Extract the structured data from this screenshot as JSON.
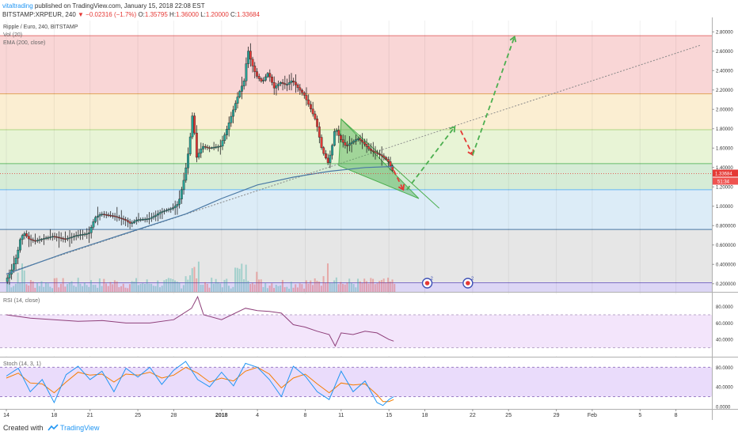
{
  "header": {
    "author": "vitaltrading",
    "published": "published on TradingView.com, January 15, 2018 22:08 EST",
    "symbol": "BITSTAMP:XRPEUR, 240",
    "arrow": "▼",
    "change": "−0.02316 (−1.7%)",
    "ohlc_o_label": "O:",
    "ohlc_o": "1.35795",
    "ohlc_h_label": "H:",
    "ohlc_h": "1.36000",
    "ohlc_l_label": "L:",
    "ohlc_l": "1.20000",
    "ohlc_c_label": "C:",
    "ohlc_c": "1.33684"
  },
  "legend": {
    "title": "Ripple / Euro, 240, BITSTAMP",
    "vol": "Vol (20)",
    "ema": "EMA (200, close)",
    "rsi": "RSI (14, close)",
    "stoch": "Stoch (14, 3, 1)"
  },
  "price_tags": {
    "last": "1.33684",
    "countdown": "51:34"
  },
  "event_badges": [
    "2",
    "2"
  ],
  "footer": {
    "created": "Created with",
    "brand": "TradingView"
  },
  "colors": {
    "up": "#26a69a",
    "down": "#e53935",
    "ema": "#4a79a5",
    "rsi": "#8e3f7a",
    "stoch_k": "#2196f3",
    "stoch_d": "#f57c00",
    "fib_zone_1": "#f9d6d6",
    "fib_zone_2": "#fbeed2",
    "fib_zone_3": "#e8f4d6",
    "fib_zone_4": "#d6ecd6",
    "fib_zone_5": "#dcecf7",
    "fib_zone_6": "#e6e6e6",
    "fib_zone_7": "#dcd6f5",
    "forecast_green": "#4caf50",
    "forecast_red": "#e53935"
  },
  "chart_data": {
    "type": "candlestick",
    "title": "Ripple / Euro, 240, BITSTAMP",
    "y_axis": {
      "range": [
        0.1,
        2.9
      ],
      "ticks": [
        "2.80000",
        "2.60000",
        "2.40000",
        "2.20000",
        "2.00000",
        "1.80000",
        "1.60000",
        "1.40000",
        "1.20000",
        "1.00000",
        "0.800000",
        "0.600000",
        "0.400000",
        "0.200000"
      ]
    },
    "rsi_axis": {
      "range": [
        20,
        95
      ],
      "ticks": [
        "80.0000",
        "60.0000",
        "40.0000"
      ],
      "bands": [
        70,
        30
      ]
    },
    "stoch_axis": {
      "range": [
        -5,
        100
      ],
      "ticks": [
        "80.0000",
        "40.0000",
        "0.0000"
      ],
      "bands": [
        80,
        20
      ]
    },
    "x_ticks": [
      "14",
      "18",
      "21",
      "25",
      "28",
      "2018",
      "4",
      "8",
      "11",
      "15",
      "18",
      "22",
      "25",
      "29",
      "Feb",
      "5",
      "8"
    ],
    "x_tick_days": [
      0,
      4,
      7,
      11,
      14,
      18,
      21,
      25,
      28,
      32,
      35,
      39,
      42,
      46,
      49,
      53,
      56
    ],
    "fib_levels": [
      2.76,
      2.16,
      1.79,
      1.44,
      1.17,
      0.76,
      0.21
    ],
    "close_path": [
      [
        0.0,
        0.22
      ],
      [
        0.5,
        0.33
      ],
      [
        1.0,
        0.5
      ],
      [
        1.3,
        0.68
      ],
      [
        1.6,
        0.72
      ],
      [
        2.0,
        0.66
      ],
      [
        2.5,
        0.64
      ],
      [
        3.0,
        0.66
      ],
      [
        4.0,
        0.69
      ],
      [
        5.0,
        0.66
      ],
      [
        6.0,
        0.7
      ],
      [
        7.0,
        0.72
      ],
      [
        7.5,
        0.88
      ],
      [
        8.0,
        0.92
      ],
      [
        9.0,
        0.9
      ],
      [
        10.0,
        0.86
      ],
      [
        10.5,
        0.82
      ],
      [
        11.0,
        0.86
      ],
      [
        12.0,
        0.87
      ],
      [
        12.5,
        0.9
      ],
      [
        13.0,
        0.94
      ],
      [
        14.0,
        0.98
      ],
      [
        14.5,
        1.03
      ],
      [
        15.0,
        1.3
      ],
      [
        15.4,
        1.62
      ],
      [
        15.7,
        1.98
      ],
      [
        16.0,
        1.5
      ],
      [
        16.5,
        1.62
      ],
      [
        17.0,
        1.6
      ],
      [
        18.0,
        1.62
      ],
      [
        18.5,
        1.78
      ],
      [
        19.5,
        2.15
      ],
      [
        20.0,
        2.3
      ],
      [
        20.3,
        2.62
      ],
      [
        20.6,
        2.48
      ],
      [
        21.0,
        2.35
      ],
      [
        21.5,
        2.28
      ],
      [
        22.0,
        2.38
      ],
      [
        22.5,
        2.22
      ],
      [
        23.0,
        2.28
      ],
      [
        23.5,
        2.25
      ],
      [
        24.0,
        2.3
      ],
      [
        24.5,
        2.22
      ],
      [
        25.0,
        2.15
      ],
      [
        25.5,
        2.02
      ],
      [
        26.0,
        1.88
      ],
      [
        26.5,
        1.58
      ],
      [
        27.0,
        1.45
      ],
      [
        27.3,
        1.58
      ],
      [
        27.6,
        1.82
      ],
      [
        28.0,
        1.7
      ],
      [
        28.5,
        1.62
      ],
      [
        29.0,
        1.66
      ],
      [
        29.5,
        1.7
      ],
      [
        30.0,
        1.65
      ],
      [
        30.5,
        1.58
      ],
      [
        31.0,
        1.55
      ],
      [
        31.5,
        1.52
      ],
      [
        32.0,
        1.47
      ],
      [
        32.4,
        1.37
      ]
    ],
    "ema_path": [
      [
        0.0,
        0.3
      ],
      [
        5.0,
        0.52
      ],
      [
        10.0,
        0.72
      ],
      [
        15.0,
        0.92
      ],
      [
        18.0,
        1.08
      ],
      [
        21.0,
        1.22
      ],
      [
        24.0,
        1.3
      ],
      [
        27.0,
        1.36
      ],
      [
        30.0,
        1.4
      ],
      [
        32.4,
        1.41
      ]
    ],
    "trend_line": [
      [
        0.5,
        0.33
      ],
      [
        58.0,
        2.66
      ]
    ],
    "triangle": [
      [
        28.0,
        1.9
      ],
      [
        27.8,
        1.42
      ],
      [
        34.5,
        1.08
      ]
    ],
    "forecast_green_1": [
      [
        33.5,
        1.17
      ],
      [
        37.5,
        1.82
      ]
    ],
    "forecast_red_1": [
      [
        38.0,
        1.78
      ],
      [
        39.0,
        1.53
      ]
    ],
    "forecast_green_2": [
      [
        39.0,
        1.53
      ],
      [
        42.5,
        2.75
      ]
    ],
    "forecast_red_main": [
      [
        32.4,
        1.37
      ],
      [
        33.2,
        1.17
      ]
    ],
    "rsi_path": [
      [
        0.0,
        70
      ],
      [
        2,
        66
      ],
      [
        4,
        64
      ],
      [
        6,
        62
      ],
      [
        8,
        63
      ],
      [
        10,
        60
      ],
      [
        12,
        60
      ],
      [
        14,
        64
      ],
      [
        15.5,
        78
      ],
      [
        16,
        92
      ],
      [
        16.5,
        70
      ],
      [
        18,
        64
      ],
      [
        20,
        78
      ],
      [
        21,
        75
      ],
      [
        22,
        74
      ],
      [
        23,
        72
      ],
      [
        24,
        58
      ],
      [
        25,
        55
      ],
      [
        26,
        50
      ],
      [
        27,
        46
      ],
      [
        27.5,
        32
      ],
      [
        28,
        48
      ],
      [
        29,
        46
      ],
      [
        30,
        50
      ],
      [
        31,
        48
      ],
      [
        32,
        40
      ],
      [
        32.4,
        38
      ]
    ],
    "stoch_k_path": [
      [
        0,
        62
      ],
      [
        1,
        78
      ],
      [
        2,
        30
      ],
      [
        3,
        55
      ],
      [
        4,
        8
      ],
      [
        5,
        65
      ],
      [
        6,
        82
      ],
      [
        7,
        55
      ],
      [
        8,
        72
      ],
      [
        9,
        30
      ],
      [
        10,
        78
      ],
      [
        11,
        60
      ],
      [
        12,
        80
      ],
      [
        13,
        45
      ],
      [
        14,
        74
      ],
      [
        15,
        92
      ],
      [
        16,
        55
      ],
      [
        17,
        40
      ],
      [
        18,
        70
      ],
      [
        19,
        42
      ],
      [
        20,
        88
      ],
      [
        21,
        80
      ],
      [
        22,
        55
      ],
      [
        23,
        20
      ],
      [
        24,
        82
      ],
      [
        25,
        62
      ],
      [
        26,
        30
      ],
      [
        27,
        14
      ],
      [
        28,
        72
      ],
      [
        29,
        30
      ],
      [
        30,
        52
      ],
      [
        31,
        8
      ],
      [
        31.5,
        2
      ],
      [
        32,
        14
      ],
      [
        32.4,
        20
      ]
    ],
    "stoch_d_path": [
      [
        0,
        58
      ],
      [
        1,
        68
      ],
      [
        2,
        48
      ],
      [
        3,
        46
      ],
      [
        4,
        28
      ],
      [
        5,
        50
      ],
      [
        6,
        70
      ],
      [
        7,
        64
      ],
      [
        8,
        66
      ],
      [
        9,
        50
      ],
      [
        10,
        66
      ],
      [
        11,
        64
      ],
      [
        12,
        70
      ],
      [
        13,
        58
      ],
      [
        14,
        64
      ],
      [
        15,
        80
      ],
      [
        16,
        68
      ],
      [
        17,
        50
      ],
      [
        18,
        58
      ],
      [
        19,
        52
      ],
      [
        20,
        72
      ],
      [
        21,
        80
      ],
      [
        22,
        66
      ],
      [
        23,
        38
      ],
      [
        24,
        58
      ],
      [
        25,
        66
      ],
      [
        26,
        46
      ],
      [
        27,
        28
      ],
      [
        28,
        48
      ],
      [
        29,
        44
      ],
      [
        30,
        46
      ],
      [
        31,
        24
      ],
      [
        31.5,
        10
      ],
      [
        32,
        10
      ],
      [
        32.4,
        14
      ]
    ]
  }
}
